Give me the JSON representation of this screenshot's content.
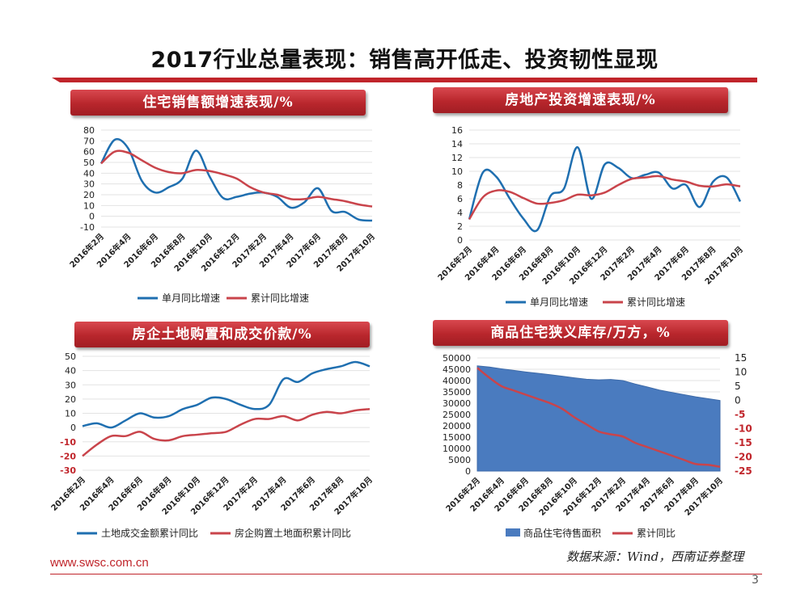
{
  "slide": {
    "title": "2017行业总量表现：销售高开低走、投资韧性显现",
    "footer_url": "www.swsc.com.cn",
    "source": "数据来源：Wind，西南证券整理",
    "page_number": "3",
    "accent_color": "#c0252b"
  },
  "panels": [
    {
      "title": "住宅销售额增速表现/%"
    },
    {
      "title": "房地产投资增速表现/%"
    },
    {
      "title": "房企土地购置和成交价款/%"
    },
    {
      "title": "商品住宅狭义库存/万方，%"
    }
  ],
  "chart_data": [
    {
      "type": "line",
      "title": "住宅销售额增速表现/%",
      "categories": [
        "2016年2月",
        "2016年3月",
        "2016年4月",
        "2016年5月",
        "2016年6月",
        "2016年7月",
        "2016年8月",
        "2016年9月",
        "2016年10月",
        "2016年11月",
        "2016年12月",
        "2017年1月",
        "2017年2月",
        "2017年3月",
        "2017年4月",
        "2017年5月",
        "2017年6月",
        "2017年7月",
        "2017年8月",
        "2017年9月",
        "2017年10月"
      ],
      "x_tick_labels": [
        "2016年2月",
        "2016年4月",
        "2016年6月",
        "2016年8月",
        "2016年10月",
        "2016年12月",
        "2017年2月",
        "2017年4月",
        "2017年6月",
        "2017年8月",
        "2017年10月"
      ],
      "ylim": [
        -10,
        80
      ],
      "yticks": [
        -10,
        0,
        10,
        20,
        30,
        40,
        50,
        60,
        70,
        80
      ],
      "series": [
        {
          "name": "单月同比增速",
          "color": "#1f6fb0",
          "values": [
            49,
            71,
            63,
            33,
            22,
            27,
            35,
            61,
            37,
            17,
            18,
            21,
            22,
            18,
            8,
            13,
            26,
            5,
            4,
            -3,
            -4
          ]
        },
        {
          "name": "累计同比增速",
          "color": "#c9444b",
          "values": [
            49,
            60,
            59,
            52,
            45,
            41,
            40,
            43,
            42,
            39,
            35,
            27,
            22,
            20,
            16,
            16,
            18,
            16,
            14,
            11,
            9
          ]
        }
      ]
    },
    {
      "type": "line",
      "title": "房地产投资增速表现/%",
      "categories": [
        "2016年2月",
        "2016年3月",
        "2016年4月",
        "2016年5月",
        "2016年6月",
        "2016年7月",
        "2016年8月",
        "2016年9月",
        "2016年10月",
        "2016年11月",
        "2016年12月",
        "2017年1月",
        "2017年2月",
        "2017年3月",
        "2017年4月",
        "2017年5月",
        "2017年6月",
        "2017年7月",
        "2017年8月",
        "2017年9月",
        "2017年10月"
      ],
      "x_tick_labels": [
        "2016年2月",
        "2016年4月",
        "2016年6月",
        "2016年8月",
        "2016年10月",
        "2016年12月",
        "2017年2月",
        "2017年4月",
        "2017年6月",
        "2017年8月",
        "2017年10月"
      ],
      "ylim": [
        0,
        16
      ],
      "yticks": [
        0,
        2,
        4,
        6,
        8,
        10,
        12,
        14,
        16
      ],
      "series": [
        {
          "name": "单月同比增速",
          "color": "#1f6fb0",
          "values": [
            3,
            9.8,
            9.2,
            6,
            3.1,
            1.4,
            6.4,
            7.5,
            13.5,
            6,
            11,
            10.5,
            9,
            9.5,
            9.8,
            7.5,
            8,
            4.8,
            8.5,
            9.1,
            5.6
          ]
        },
        {
          "name": "累计同比增速",
          "color": "#c9444b",
          "values": [
            3,
            6.2,
            7.2,
            7,
            6.1,
            5.3,
            5.4,
            5.8,
            6.6,
            6.5,
            6.9,
            8,
            8.9,
            9.1,
            9.3,
            8.8,
            8.5,
            7.9,
            7.8,
            8.1,
            7.8
          ]
        }
      ]
    },
    {
      "type": "line",
      "title": "房企土地购置和成交价款/%",
      "categories": [
        "2016年2月",
        "2016年3月",
        "2016年4月",
        "2016年5月",
        "2016年6月",
        "2016年7月",
        "2016年8月",
        "2016年9月",
        "2016年10月",
        "2016年11月",
        "2016年12月",
        "2017年1月",
        "2017年2月",
        "2017年3月",
        "2017年4月",
        "2017年5月",
        "2017年6月",
        "2017年7月",
        "2017年8月",
        "2017年9月",
        "2017年10月"
      ],
      "x_tick_labels": [
        "2016年2月",
        "2016年4月",
        "2016年6月",
        "2016年8月",
        "2016年10月",
        "2016年12月",
        "2017年2月",
        "2017年4月",
        "2017年6月",
        "2017年8月",
        "2017年10月"
      ],
      "ylim": [
        -30,
        50
      ],
      "yticks": [
        -30,
        -20,
        -10,
        0,
        10,
        20,
        30,
        40,
        50
      ],
      "negative_tick_color": "#c0252b",
      "series": [
        {
          "name": "土地成交金额累计同比",
          "color": "#1f6fb0",
          "values": [
            1,
            3,
            0,
            5,
            10,
            7,
            8,
            13,
            16,
            21,
            20,
            16,
            13,
            16,
            34,
            32,
            38,
            41,
            43,
            46,
            43
          ]
        },
        {
          "name": "房企购置土地面积累计同比",
          "color": "#c9444b",
          "values": [
            -20,
            -12,
            -6,
            -6,
            -3,
            -8,
            -9,
            -6,
            -5,
            -4,
            -3,
            2,
            6,
            6,
            8,
            5,
            9,
            11,
            10,
            12,
            13
          ]
        }
      ]
    },
    {
      "type": "area",
      "title": "商品住宅狭义库存/万方，%",
      "categories": [
        "2016年2月",
        "2016年3月",
        "2016年4月",
        "2016年5月",
        "2016年6月",
        "2016年7月",
        "2016年8月",
        "2016年9月",
        "2016年10月",
        "2016年11月",
        "2016年12月",
        "2017年1月",
        "2017年2月",
        "2017年3月",
        "2017年4月",
        "2017年5月",
        "2017年6月",
        "2017年7月",
        "2017年8月",
        "2017年9月",
        "2017年10月"
      ],
      "x_tick_labels": [
        "2016年2月",
        "2016年4月",
        "2016年6月",
        "2016年8月",
        "2016年10月",
        "2016年12月",
        "2017年2月",
        "2017年4月",
        "2017年6月",
        "2017年8月",
        "2017年10月"
      ],
      "ylim": [
        0,
        50000
      ],
      "yticks": [
        0,
        5000,
        10000,
        15000,
        20000,
        25000,
        30000,
        35000,
        40000,
        45000,
        50000
      ],
      "y2lim": [
        -25,
        15
      ],
      "y2ticks": [
        15,
        10,
        5,
        0,
        -5,
        -10,
        -15,
        -20,
        -25
      ],
      "negative_tick_color": "#c0252b",
      "series": [
        {
          "name": "商品住宅待售面积",
          "axis": "left",
          "kind": "area",
          "color": "#4a7bbf",
          "values": [
            46500,
            46000,
            45200,
            44500,
            43800,
            43200,
            42600,
            41900,
            41200,
            40600,
            40300,
            40500,
            40000,
            38500,
            37200,
            35800,
            34800,
            33800,
            32800,
            32000,
            31200
          ]
        },
        {
          "name": "累计同比",
          "axis": "right",
          "kind": "line",
          "color": "#c9444b",
          "values": [
            11.5,
            8,
            5,
            3.5,
            2,
            0.5,
            -1,
            -3,
            -6,
            -8.5,
            -11,
            -12,
            -12.8,
            -15,
            -16.5,
            -18,
            -19.5,
            -21,
            -22.5,
            -22.8,
            -23.5
          ]
        }
      ]
    }
  ]
}
